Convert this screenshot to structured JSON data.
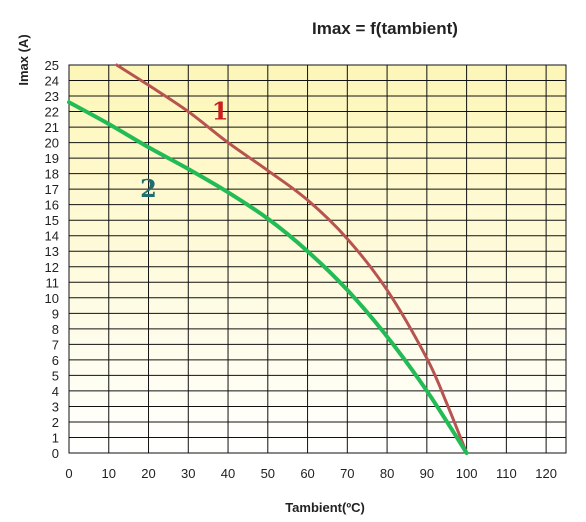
{
  "chart_data": {
    "type": "line",
    "title": "Imax = f(tambient)",
    "xlabel": "Tambient(ºC)",
    "ylabel": "Imax (A)",
    "xlim": [
      0,
      125
    ],
    "ylim": [
      0,
      25
    ],
    "xticks": [
      0,
      10,
      20,
      30,
      40,
      50,
      60,
      70,
      80,
      90,
      100,
      110,
      120
    ],
    "yticks": [
      0,
      1,
      2,
      3,
      4,
      5,
      6,
      7,
      8,
      9,
      10,
      11,
      12,
      13,
      14,
      15,
      16,
      17,
      18,
      19,
      20,
      21,
      22,
      23,
      24,
      25
    ],
    "grid": true,
    "background_color_top": "#fdf6b8",
    "background_color_bottom": "#ffffff",
    "series": [
      {
        "name": "1",
        "color": "#b85450",
        "label_color": "#cc1f1f",
        "label_at": [
          38,
          21.5
        ],
        "x": [
          12,
          20,
          30,
          40,
          50,
          60,
          70,
          80,
          90,
          95,
          100
        ],
        "y": [
          25,
          23.7,
          22,
          20,
          18.2,
          16.3,
          13.8,
          10.5,
          6.1,
          3.2,
          0
        ]
      },
      {
        "name": "2",
        "color": "#22bb55",
        "label_color": "#1f6f6f",
        "label_at": [
          20,
          16.5
        ],
        "x": [
          0,
          10,
          20,
          30,
          40,
          50,
          60,
          70,
          80,
          90,
          100
        ],
        "y": [
          22.6,
          21.2,
          19.7,
          18.3,
          16.8,
          15.1,
          13,
          10.5,
          7.5,
          4,
          0
        ]
      }
    ]
  }
}
